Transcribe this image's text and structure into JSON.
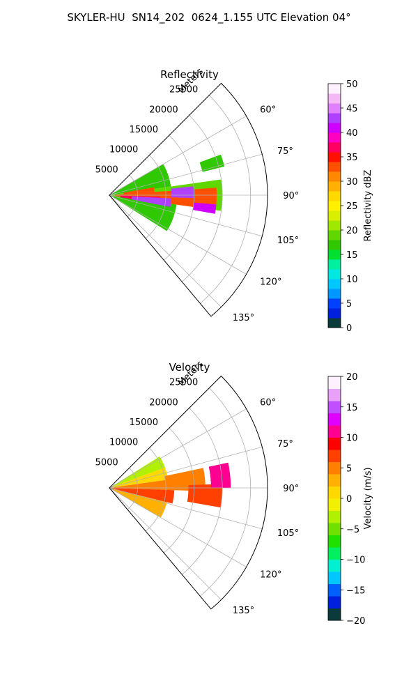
{
  "title": "SKYLER-HU  SN14_202  0624_1.155 UTC Elevation 04°",
  "chart_data": [
    {
      "type": "heatmap",
      "subtype": "polar-sector",
      "title": "Reflectivity",
      "radial_label": "Meters",
      "radial_ticks": [
        5000,
        10000,
        15000,
        20000,
        25000
      ],
      "radial_tick_labels": [
        "5000",
        "10000",
        "15000",
        "20000",
        "25000"
      ],
      "r_max": 28000,
      "azimuth_range": [
        45,
        140
      ],
      "azimuth_ticks": [
        60,
        75,
        90,
        105,
        120,
        135
      ],
      "azimuth_tick_labels": [
        "60°",
        "75°",
        "90°",
        "105°",
        "120°",
        "135°"
      ],
      "grid": true,
      "colorbar": {
        "label": "Reflectivity dBZ",
        "range": [
          0,
          50
        ],
        "ticks": [
          0,
          5,
          10,
          15,
          20,
          25,
          30,
          35,
          40,
          45,
          50
        ],
        "tick_labels": [
          "0",
          "5",
          "10",
          "15",
          "20",
          "25",
          "30",
          "35",
          "40",
          "45",
          "50"
        ],
        "stops": [
          {
            "v": 0,
            "c": "#08084a"
          },
          {
            "v": 2,
            "c": "#0a3a3a"
          },
          {
            "v": 4,
            "c": "#0020e0"
          },
          {
            "v": 6,
            "c": "#0040ff"
          },
          {
            "v": 8,
            "c": "#0098ff"
          },
          {
            "v": 10,
            "c": "#00c8ff"
          },
          {
            "v": 12,
            "c": "#00e8e0"
          },
          {
            "v": 14,
            "c": "#00f0a0"
          },
          {
            "v": 16,
            "c": "#00e030"
          },
          {
            "v": 18,
            "c": "#30c800"
          },
          {
            "v": 20,
            "c": "#60d800"
          },
          {
            "v": 22,
            "c": "#a0e800"
          },
          {
            "v": 24,
            "c": "#d8f000"
          },
          {
            "v": 26,
            "c": "#fff000"
          },
          {
            "v": 28,
            "c": "#ffd800"
          },
          {
            "v": 30,
            "c": "#ffb000"
          },
          {
            "v": 32,
            "c": "#ff8800"
          },
          {
            "v": 34,
            "c": "#ff5000"
          },
          {
            "v": 36,
            "c": "#ff1000"
          },
          {
            "v": 38,
            "c": "#ff0060"
          },
          {
            "v": 40,
            "c": "#ff00c0"
          },
          {
            "v": 42,
            "c": "#d000ff"
          },
          {
            "v": 44,
            "c": "#b040ff"
          },
          {
            "v": 46,
            "c": "#e080ff"
          },
          {
            "v": 48,
            "c": "#f4b8f4"
          },
          {
            "v": 50,
            "c": "#fff0ff"
          }
        ]
      },
      "echo_regions": [
        {
          "az": [
            60,
            82
          ],
          "r": [
            300,
            11000
          ],
          "value": 17
        },
        {
          "az": [
            82,
            98
          ],
          "r": [
            300,
            20000
          ],
          "value": 20
        },
        {
          "az": [
            98,
            122
          ],
          "r": [
            300,
            12000
          ],
          "value": 17
        },
        {
          "az": [
            86,
            98
          ],
          "r": [
            1000,
            19000
          ],
          "value": 34
        },
        {
          "az": [
            80,
            90
          ],
          "r": [
            2500,
            8000
          ],
          "value": 33
        },
        {
          "az": [
            92,
            100
          ],
          "r": [
            2000,
            9000
          ],
          "value": 37
        },
        {
          "az": [
            93,
            101
          ],
          "r": [
            4000,
            11000
          ],
          "value": 44
        },
        {
          "az": [
            84,
            92
          ],
          "r": [
            11000,
            15000
          ],
          "value": 43
        },
        {
          "az": [
            95,
            100
          ],
          "r": [
            15000,
            19000
          ],
          "value": 42
        },
        {
          "az": [
            70,
            76
          ],
          "r": [
            17000,
            21000
          ],
          "value": 18
        }
      ]
    },
    {
      "type": "heatmap",
      "subtype": "polar-sector",
      "title": "Velocity",
      "radial_label": "Meters",
      "radial_ticks": [
        5000,
        10000,
        15000,
        20000,
        25000
      ],
      "radial_tick_labels": [
        "5000",
        "10000",
        "15000",
        "20000",
        "25000"
      ],
      "r_max": 28000,
      "azimuth_range": [
        45,
        140
      ],
      "azimuth_ticks": [
        60,
        75,
        90,
        105,
        120,
        135
      ],
      "azimuth_tick_labels": [
        "60°",
        "75°",
        "90°",
        "105°",
        "120°",
        "135°"
      ],
      "grid": true,
      "colorbar": {
        "label": "Velocity (m/s)",
        "range": [
          -20,
          20
        ],
        "ticks": [
          -20,
          -15,
          -10,
          -5,
          0,
          5,
          10,
          15,
          20
        ],
        "tick_labels": [
          "−20",
          "−15",
          "−10",
          "−5",
          "0",
          "5",
          "10",
          "15",
          "20"
        ],
        "stops": [
          {
            "v": -20,
            "c": "#08084a"
          },
          {
            "v": -18,
            "c": "#0a3a3a"
          },
          {
            "v": -16,
            "c": "#0020e0"
          },
          {
            "v": -14,
            "c": "#0060ff"
          },
          {
            "v": -12,
            "c": "#00c8ff"
          },
          {
            "v": -10,
            "c": "#00f0d0"
          },
          {
            "v": -8,
            "c": "#00f060"
          },
          {
            "v": -6,
            "c": "#20e000"
          },
          {
            "v": -4,
            "c": "#70e000"
          },
          {
            "v": -2,
            "c": "#b0f000"
          },
          {
            "v": 0,
            "c": "#f0f000"
          },
          {
            "v": 2,
            "c": "#ffd800"
          },
          {
            "v": 4,
            "c": "#ffb000"
          },
          {
            "v": 6,
            "c": "#ff8000"
          },
          {
            "v": 8,
            "c": "#ff4000"
          },
          {
            "v": 10,
            "c": "#ff0000"
          },
          {
            "v": 12,
            "c": "#ff0090"
          },
          {
            "v": 14,
            "c": "#e000ff"
          },
          {
            "v": 16,
            "c": "#c050ff"
          },
          {
            "v": 18,
            "c": "#e8a0f8"
          },
          {
            "v": 20,
            "c": "#fff0ff"
          }
        ]
      },
      "echo_regions": [
        {
          "az": [
            58,
            70
          ],
          "r": [
            300,
            10500
          ],
          "value": -3
        },
        {
          "az": [
            70,
            82
          ],
          "r": [
            300,
            10500
          ],
          "value": 1
        },
        {
          "az": [
            82,
            92
          ],
          "r": [
            300,
            11000
          ],
          "value": 5
        },
        {
          "az": [
            92,
            104
          ],
          "r": [
            300,
            11500
          ],
          "value": 8
        },
        {
          "az": [
            104,
            120
          ],
          "r": [
            300,
            10500
          ],
          "value": 4
        },
        {
          "az": [
            78,
            92
          ],
          "r": [
            10000,
            17000
          ],
          "value": 6
        },
        {
          "az": [
            88,
            100
          ],
          "r": [
            14000,
            20000
          ],
          "value": 7
        },
        {
          "az": [
            78,
            90
          ],
          "r": [
            18000,
            21500
          ],
          "value": 12
        }
      ]
    }
  ]
}
